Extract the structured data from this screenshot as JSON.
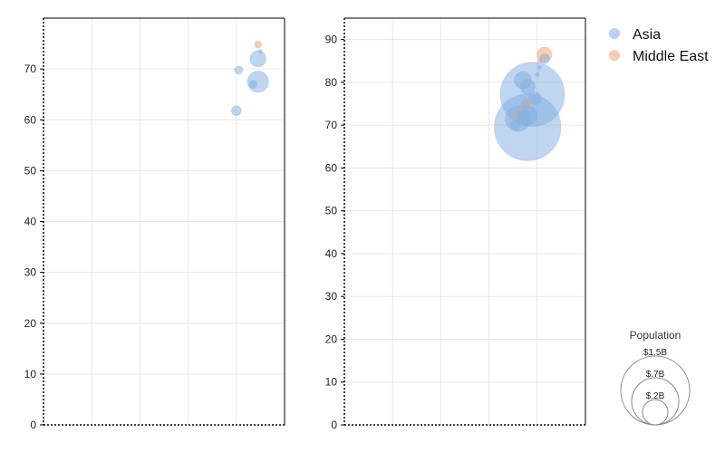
{
  "colors": {
    "asia": "#7eaee0",
    "middle_east": "#f4a06a",
    "grid": "#e6e6e6",
    "axis": "#000000"
  },
  "legend": {
    "placement": "top-right",
    "entries": [
      {
        "name": "Asia",
        "color": "#7eaee0"
      },
      {
        "name": "Middle East",
        "color": "#f4a06a"
      }
    ]
  },
  "size_legend": {
    "title": "Population",
    "entries": [
      {
        "label": "$1.5B",
        "value": 1.5
      },
      {
        "label": "$.7B",
        "value": 0.7
      },
      {
        "label": "$.2B",
        "value": 0.2
      }
    ]
  },
  "chart_data": [
    {
      "type": "scatter",
      "bubble": true,
      "grid": true,
      "xlim": [
        0,
        10
      ],
      "ylim": [
        0,
        80
      ],
      "yticks": [
        0,
        10,
        20,
        30,
        40,
        50,
        60,
        70
      ],
      "series": [
        {
          "name": "Asia",
          "color": "#7eaee0",
          "points": [
            {
              "x": 8.1,
              "y": 69.8,
              "size": 0.02
            },
            {
              "x": 8.9,
              "y": 72.0,
              "size": 0.08
            },
            {
              "x": 8.9,
              "y": 67.5,
              "size": 0.14
            },
            {
              "x": 8.7,
              "y": 67.0,
              "size": 0.02
            },
            {
              "x": 8.0,
              "y": 61.8,
              "size": 0.03
            },
            {
              "x": 9.0,
              "y": 73.5,
              "size": 0.004
            }
          ]
        },
        {
          "name": "Middle East",
          "color": "#f4a06a",
          "points": [
            {
              "x": 8.9,
              "y": 74.8,
              "size": 0.015
            }
          ]
        }
      ]
    },
    {
      "type": "scatter",
      "bubble": true,
      "grid": true,
      "xlim": [
        0,
        10
      ],
      "ylim": [
        0,
        95
      ],
      "yticks": [
        0,
        10,
        20,
        30,
        40,
        50,
        60,
        70,
        80,
        90
      ],
      "series": [
        {
          "name": "Asia",
          "color": "#7eaee0",
          "points": [
            {
              "x": 7.6,
              "y": 69.5,
              "size": 1.4
            },
            {
              "x": 7.8,
              "y": 77.2,
              "size": 1.3
            },
            {
              "x": 7.2,
              "y": 71.5,
              "size": 0.2
            },
            {
              "x": 7.6,
              "y": 72.2,
              "size": 0.12
            },
            {
              "x": 7.4,
              "y": 80.5,
              "size": 0.09
            },
            {
              "x": 7.6,
              "y": 79.0,
              "size": 0.07
            },
            {
              "x": 7.9,
              "y": 76.3,
              "size": 0.05
            },
            {
              "x": 7.1,
              "y": 70.0,
              "size": 0.03
            },
            {
              "x": 8.3,
              "y": 85.5,
              "size": 0.03
            },
            {
              "x": 7.5,
              "y": 75.0,
              "size": 0.02
            },
            {
              "x": 8.0,
              "y": 81.8,
              "size": 0.005
            },
            {
              "x": 8.1,
              "y": 83.5,
              "size": 0.004
            }
          ]
        },
        {
          "name": "Middle East",
          "color": "#f4a06a",
          "points": [
            {
              "x": 8.3,
              "y": 86.5,
              "size": 0.07
            },
            {
              "x": 7.6,
              "y": 75.0,
              "size": 0.01
            },
            {
              "x": 7.0,
              "y": 72.0,
              "size": 0.008
            },
            {
              "x": 7.3,
              "y": 73.5,
              "size": 0.006
            },
            {
              "x": 8.1,
              "y": 85.0,
              "size": 0.005
            }
          ]
        }
      ]
    }
  ]
}
